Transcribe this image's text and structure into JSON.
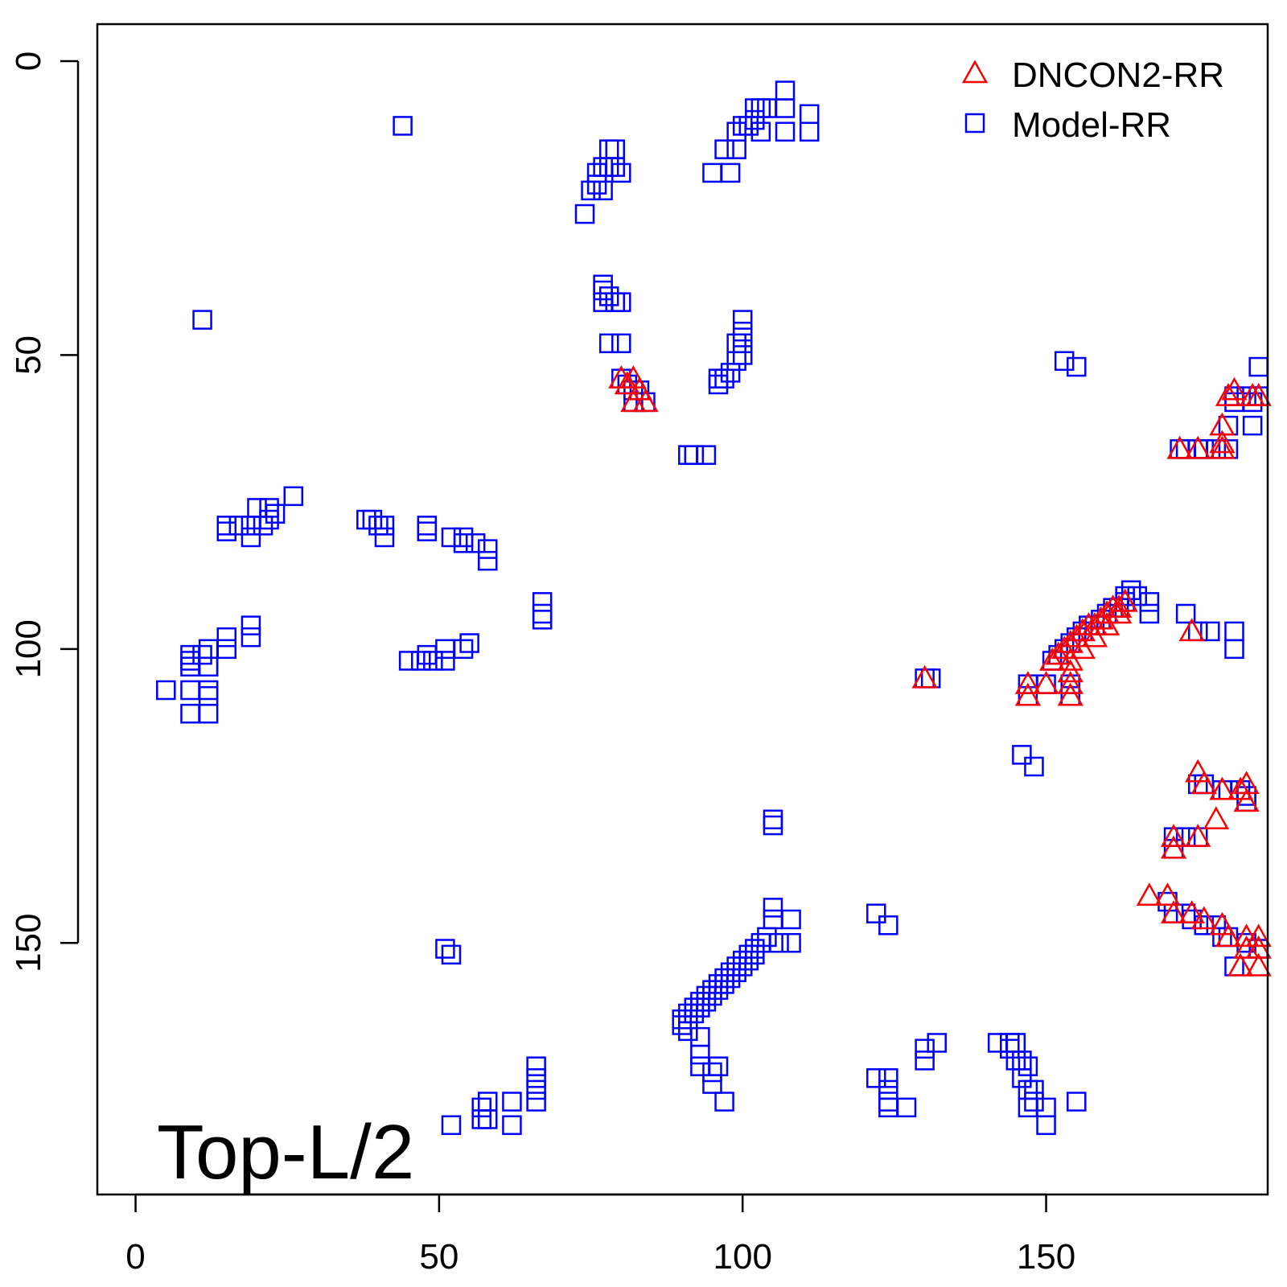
{
  "chart_data": {
    "type": "scatter",
    "annotation": "Top-L/2",
    "y_axis_inverted": true,
    "xlim": [
      -6.3,
      186.5
    ],
    "ylim": [
      -6.3,
      192.8
    ],
    "x_ticks": [
      0,
      50,
      100,
      150
    ],
    "y_ticks": [
      0,
      50,
      100,
      150
    ],
    "grid": false,
    "legend_position": "top-right",
    "series": [
      {
        "name": "DNCON2-RR",
        "marker": "triangle",
        "color": "#ff0000",
        "points": [
          [
            80,
            54
          ],
          [
            81,
            55
          ],
          [
            82,
            54
          ],
          [
            83,
            56
          ],
          [
            82,
            58
          ],
          [
            84,
            58
          ],
          [
            172,
            66
          ],
          [
            175,
            66
          ],
          [
            179,
            65
          ],
          [
            179,
            66
          ],
          [
            179,
            62
          ],
          [
            180,
            57
          ],
          [
            181,
            56
          ],
          [
            184,
            57
          ],
          [
            185,
            57
          ],
          [
            130,
            105
          ],
          [
            147,
            106
          ],
          [
            147,
            108
          ],
          [
            150,
            106
          ],
          [
            154,
            104
          ],
          [
            154,
            106
          ],
          [
            154,
            108
          ],
          [
            151,
            102
          ],
          [
            152,
            101
          ],
          [
            153,
            100
          ],
          [
            154,
            99
          ],
          [
            155,
            98
          ],
          [
            156,
            97
          ],
          [
            157,
            96
          ],
          [
            158,
            96
          ],
          [
            159,
            95
          ],
          [
            160,
            94
          ],
          [
            161,
            93
          ],
          [
            162,
            93
          ],
          [
            163,
            92
          ],
          [
            154,
            102
          ],
          [
            156,
            100
          ],
          [
            158,
            98
          ],
          [
            160,
            96
          ],
          [
            162,
            94
          ],
          [
            174,
            97
          ],
          [
            175,
            121
          ],
          [
            176,
            123
          ],
          [
            179,
            124
          ],
          [
            182,
            124
          ],
          [
            183,
            126
          ],
          [
            183,
            123
          ],
          [
            178,
            129
          ],
          [
            171,
            132
          ],
          [
            171,
            134
          ],
          [
            175,
            132
          ],
          [
            167,
            142
          ],
          [
            170,
            142
          ],
          [
            171,
            145
          ],
          [
            174,
            145
          ],
          [
            176,
            146
          ],
          [
            179,
            147
          ],
          [
            180,
            149
          ],
          [
            183,
            149
          ],
          [
            183,
            151
          ],
          [
            185,
            149
          ],
          [
            185,
            151
          ],
          [
            182,
            154
          ],
          [
            185,
            154
          ]
        ]
      },
      {
        "name": "Model-RR",
        "marker": "square",
        "color": "#0000ff",
        "points": [
          [
            107,
            5
          ],
          [
            107,
            8
          ],
          [
            104,
            8
          ],
          [
            103,
            8
          ],
          [
            102,
            8
          ],
          [
            111,
            9
          ],
          [
            102,
            10
          ],
          [
            101,
            11
          ],
          [
            100,
            11
          ],
          [
            99,
            12
          ],
          [
            103,
            12
          ],
          [
            107,
            12
          ],
          [
            111,
            12
          ],
          [
            97,
            15
          ],
          [
            99,
            15
          ],
          [
            44,
            11
          ],
          [
            78,
            15
          ],
          [
            79,
            15
          ],
          [
            78,
            18
          ],
          [
            77,
            18
          ],
          [
            79,
            18
          ],
          [
            80,
            19
          ],
          [
            76,
            19
          ],
          [
            76,
            21
          ],
          [
            77,
            22
          ],
          [
            75,
            22
          ],
          [
            74,
            26
          ],
          [
            95,
            19
          ],
          [
            98,
            19
          ],
          [
            77,
            38
          ],
          [
            77,
            39
          ],
          [
            78,
            40
          ],
          [
            79,
            41
          ],
          [
            77,
            41
          ],
          [
            80,
            41
          ],
          [
            78,
            48
          ],
          [
            80,
            48
          ],
          [
            11,
            44
          ],
          [
            100,
            44
          ],
          [
            100,
            46
          ],
          [
            100,
            48
          ],
          [
            99,
            48
          ],
          [
            100,
            50
          ],
          [
            99,
            51
          ],
          [
            98,
            53
          ],
          [
            96,
            54
          ],
          [
            97,
            54
          ],
          [
            96,
            55
          ],
          [
            80,
            54
          ],
          [
            81,
            55
          ],
          [
            82,
            56
          ],
          [
            83,
            56
          ],
          [
            82,
            58
          ],
          [
            84,
            58
          ],
          [
            153,
            51
          ],
          [
            155,
            52
          ],
          [
            185,
            52
          ],
          [
            181,
            57
          ],
          [
            183,
            57
          ],
          [
            185,
            57
          ],
          [
            181,
            58
          ],
          [
            184,
            58
          ],
          [
            180,
            62
          ],
          [
            184,
            62
          ],
          [
            172,
            66
          ],
          [
            173,
            66
          ],
          [
            175,
            66
          ],
          [
            176,
            66
          ],
          [
            178,
            66
          ],
          [
            180,
            66
          ],
          [
            91,
            67
          ],
          [
            92,
            67
          ],
          [
            94,
            67
          ],
          [
            26,
            74
          ],
          [
            20,
            76
          ],
          [
            22,
            76
          ],
          [
            23,
            77
          ],
          [
            22,
            78
          ],
          [
            17,
            79
          ],
          [
            19,
            79
          ],
          [
            21,
            79
          ],
          [
            15,
            79
          ],
          [
            15,
            80
          ],
          [
            19,
            81
          ],
          [
            38,
            78
          ],
          [
            39,
            78
          ],
          [
            40,
            79
          ],
          [
            41,
            79
          ],
          [
            41,
            81
          ],
          [
            48,
            79
          ],
          [
            48,
            80
          ],
          [
            52,
            81
          ],
          [
            54,
            81
          ],
          [
            54,
            82
          ],
          [
            56,
            82
          ],
          [
            58,
            83
          ],
          [
            58,
            85
          ],
          [
            67,
            92
          ],
          [
            67,
            94
          ],
          [
            67,
            95
          ],
          [
            164,
            90
          ],
          [
            163,
            91
          ],
          [
            165,
            91
          ],
          [
            167,
            92
          ],
          [
            167,
            94
          ],
          [
            173,
            94
          ],
          [
            175,
            97
          ],
          [
            177,
            97
          ],
          [
            181,
            97
          ],
          [
            181,
            100
          ],
          [
            19,
            96
          ],
          [
            19,
            98
          ],
          [
            15,
            98
          ],
          [
            15,
            100
          ],
          [
            12,
            100
          ],
          [
            11,
            101
          ],
          [
            9,
            101
          ],
          [
            9,
            102
          ],
          [
            12,
            103
          ],
          [
            9,
            103
          ],
          [
            12,
            103
          ],
          [
            45,
            102
          ],
          [
            47,
            102
          ],
          [
            49,
            102
          ],
          [
            51,
            102
          ],
          [
            48,
            101
          ],
          [
            51,
            100
          ],
          [
            54,
            100
          ],
          [
            55,
            99
          ],
          [
            5,
            107
          ],
          [
            9,
            107
          ],
          [
            12,
            107
          ],
          [
            12,
            108
          ],
          [
            9,
            111
          ],
          [
            12,
            111
          ],
          [
            130,
            105
          ],
          [
            131,
            105
          ],
          [
            147,
            106
          ],
          [
            147,
            108
          ],
          [
            150,
            106
          ],
          [
            154,
            106
          ],
          [
            154,
            108
          ],
          [
            151,
            102
          ],
          [
            152,
            101
          ],
          [
            153,
            100
          ],
          [
            154,
            99
          ],
          [
            155,
            98
          ],
          [
            156,
            97
          ],
          [
            157,
            96
          ],
          [
            158,
            96
          ],
          [
            159,
            95
          ],
          [
            160,
            94
          ],
          [
            161,
            93
          ],
          [
            162,
            93
          ],
          [
            163,
            92
          ],
          [
            146,
            118
          ],
          [
            148,
            120
          ],
          [
            105,
            129
          ],
          [
            105,
            130
          ],
          [
            175,
            123
          ],
          [
            176,
            123
          ],
          [
            179,
            124
          ],
          [
            180,
            124
          ],
          [
            182,
            124
          ],
          [
            183,
            125
          ],
          [
            183,
            126
          ],
          [
            171,
            132
          ],
          [
            171,
            134
          ],
          [
            173,
            132
          ],
          [
            175,
            132
          ],
          [
            170,
            143
          ],
          [
            171,
            145
          ],
          [
            173,
            145
          ],
          [
            174,
            146
          ],
          [
            176,
            147
          ],
          [
            178,
            147
          ],
          [
            179,
            149
          ],
          [
            180,
            149
          ],
          [
            183,
            150
          ],
          [
            185,
            151
          ],
          [
            181,
            154
          ],
          [
            122,
            145
          ],
          [
            124,
            147
          ],
          [
            105,
            144
          ],
          [
            105,
            146
          ],
          [
            108,
            146
          ],
          [
            106,
            150
          ],
          [
            108,
            150
          ],
          [
            104,
            149
          ],
          [
            103,
            150
          ],
          [
            102,
            151
          ],
          [
            101,
            152
          ],
          [
            100,
            153
          ],
          [
            99,
            154
          ],
          [
            98,
            155
          ],
          [
            97,
            156
          ],
          [
            96,
            157
          ],
          [
            95,
            158
          ],
          [
            94,
            159
          ],
          [
            93,
            160
          ],
          [
            92,
            161
          ],
          [
            91,
            162
          ],
          [
            90,
            163
          ],
          [
            90,
            164
          ],
          [
            91,
            163
          ],
          [
            92,
            162
          ],
          [
            93,
            161
          ],
          [
            94,
            160
          ],
          [
            95,
            159
          ],
          [
            96,
            158
          ],
          [
            97,
            157
          ],
          [
            98,
            156
          ],
          [
            99,
            155
          ],
          [
            100,
            154
          ],
          [
            101,
            153
          ],
          [
            102,
            152
          ],
          [
            91,
            165
          ],
          [
            93,
            166
          ],
          [
            93,
            169
          ],
          [
            93,
            171
          ],
          [
            96,
            171
          ],
          [
            95,
            172
          ],
          [
            95,
            174
          ],
          [
            97,
            177
          ],
          [
            51,
            151
          ],
          [
            52,
            152
          ],
          [
            132,
            167
          ],
          [
            130,
            168
          ],
          [
            130,
            170
          ],
          [
            122,
            173
          ],
          [
            124,
            173
          ],
          [
            124,
            175
          ],
          [
            124,
            177
          ],
          [
            124,
            178
          ],
          [
            127,
            178
          ],
          [
            142,
            167
          ],
          [
            144,
            167
          ],
          [
            145,
            167
          ],
          [
            144,
            168
          ],
          [
            145,
            170
          ],
          [
            146,
            170
          ],
          [
            147,
            171
          ],
          [
            146,
            173
          ],
          [
            147,
            175
          ],
          [
            148,
            175
          ],
          [
            148,
            177
          ],
          [
            147,
            178
          ],
          [
            150,
            178
          ],
          [
            150,
            181
          ],
          [
            155,
            177
          ],
          [
            66,
            171
          ],
          [
            66,
            173
          ],
          [
            66,
            175
          ],
          [
            66,
            177
          ],
          [
            62,
            177
          ],
          [
            58,
            177
          ],
          [
            57,
            178
          ],
          [
            58,
            180
          ],
          [
            57,
            180
          ],
          [
            62,
            181
          ],
          [
            52,
            181
          ]
        ]
      }
    ]
  }
}
